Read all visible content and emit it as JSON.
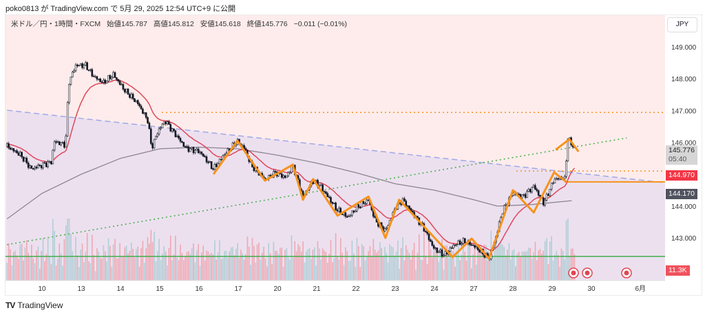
{
  "publish_line": "poko0813 が TradingView.com で 5月 29, 2025 12:54 UTC+9 に公開",
  "legend": {
    "symbol": "米ドル／円・1時間・FXCM",
    "open": "始値145.787",
    "high": "高値145.812",
    "low": "安値145.618",
    "close": "終値145.776",
    "change": "−0.011 (−0.01%)"
  },
  "currency": "JPY",
  "tags": {
    "last_price": "145.776",
    "countdown": "05:40",
    "level_red": "144.970",
    "ma_value": "144.170",
    "volume": "11.3K"
  },
  "brand": "TradingView",
  "colors": {
    "pink_bg": "#fdeceb",
    "lavender_bg": "#ece0ef",
    "candle": "#131722",
    "ma_fast": "#e0475a",
    "ma_slow": "#8c8490",
    "zigzag": "#f7931a",
    "trend_green": "#4caf50",
    "support_green": "#3fae49",
    "channel_blue": "#9fa8e8",
    "tag_red": "#f23645",
    "tag_dark": "#50535e"
  },
  "chart_data": {
    "type": "candlestick",
    "title": "米ドル／円・1時間・FXCM",
    "x_unit": "trading days since May 10 tick",
    "x_ticks": [
      {
        "t": 0,
        "label": "10"
      },
      {
        "t": 1,
        "label": "13"
      },
      {
        "t": 2,
        "label": "14"
      },
      {
        "t": 3,
        "label": "15"
      },
      {
        "t": 4,
        "label": "16"
      },
      {
        "t": 5,
        "label": "17"
      },
      {
        "t": 6,
        "label": "20"
      },
      {
        "t": 7,
        "label": "21"
      },
      {
        "t": 8,
        "label": "22"
      },
      {
        "t": 9,
        "label": "23"
      },
      {
        "t": 10,
        "label": "24"
      },
      {
        "t": 11,
        "label": "27"
      },
      {
        "t": 12,
        "label": "28"
      },
      {
        "t": 13,
        "label": "29"
      },
      {
        "t": 14,
        "label": "30"
      },
      {
        "t": 15.25,
        "label": "6月"
      }
    ],
    "y_ticks": [
      "149.000",
      "148.000",
      "147.000",
      "146.000",
      "144.000",
      "143.000"
    ],
    "ylim": [
      142.1,
      149.95
    ],
    "price_path": [
      [
        -0.89,
        145.88
      ],
      [
        -0.54,
        145.6
      ],
      [
        -0.28,
        145.17
      ],
      [
        -0.02,
        145.28
      ],
      [
        0.25,
        145.39
      ],
      [
        0.3,
        146.03
      ],
      [
        0.6,
        145.93
      ],
      [
        0.68,
        147.87
      ],
      [
        0.86,
        148.42
      ],
      [
        1.12,
        148.42
      ],
      [
        1.3,
        148.09
      ],
      [
        1.56,
        147.87
      ],
      [
        1.82,
        148.13
      ],
      [
        2.09,
        147.66
      ],
      [
        2.44,
        147.23
      ],
      [
        2.7,
        146.68
      ],
      [
        2.79,
        145.82
      ],
      [
        2.96,
        146.36
      ],
      [
        3.14,
        146.68
      ],
      [
        3.4,
        146.25
      ],
      [
        3.67,
        145.82
      ],
      [
        4.02,
        145.71
      ],
      [
        4.37,
        145.17
      ],
      [
        4.63,
        145.6
      ],
      [
        4.98,
        146.03
      ],
      [
        5.16,
        145.82
      ],
      [
        5.33,
        145.28
      ],
      [
        5.68,
        144.84
      ],
      [
        5.95,
        145.06
      ],
      [
        6.21,
        144.89
      ],
      [
        6.39,
        145.28
      ],
      [
        6.65,
        144.3
      ],
      [
        6.91,
        144.8
      ],
      [
        7.09,
        144.63
      ],
      [
        7.53,
        143.87
      ],
      [
        7.79,
        143.65
      ],
      [
        8.05,
        143.98
      ],
      [
        8.32,
        144.19
      ],
      [
        8.49,
        143.55
      ],
      [
        8.75,
        143.22
      ],
      [
        9.02,
        143.98
      ],
      [
        9.19,
        144.19
      ],
      [
        9.46,
        143.76
      ],
      [
        9.72,
        143.33
      ],
      [
        9.98,
        142.68
      ],
      [
        10.25,
        142.46
      ],
      [
        10.51,
        142.79
      ],
      [
        10.77,
        142.9
      ],
      [
        11.04,
        142.72
      ],
      [
        11.39,
        142.35
      ],
      [
        11.56,
        143.0
      ],
      [
        11.74,
        143.87
      ],
      [
        12.0,
        144.41
      ],
      [
        12.26,
        144.3
      ],
      [
        12.53,
        144.63
      ],
      [
        12.79,
        144.09
      ],
      [
        13.05,
        144.84
      ],
      [
        13.23,
        144.89
      ],
      [
        13.32,
        144.84
      ],
      [
        13.4,
        146.14
      ],
      [
        13.58,
        145.78
      ]
    ],
    "ma_slow": [
      [
        -0.89,
        143.6
      ],
      [
        0,
        144.4
      ],
      [
        1,
        145.0
      ],
      [
        2,
        145.5
      ],
      [
        3,
        145.8
      ],
      [
        4,
        145.85
      ],
      [
        5,
        145.8
      ],
      [
        6,
        145.6
      ],
      [
        7,
        145.35
      ],
      [
        8,
        145.05
      ],
      [
        9,
        144.7
      ],
      [
        10,
        144.5
      ],
      [
        11,
        144.2
      ],
      [
        11.6,
        144.0
      ],
      [
        12.5,
        144.05
      ],
      [
        13.5,
        144.17
      ]
    ],
    "channel_line": [
      [
        -0.89,
        147.01
      ],
      [
        15.9,
        144.73
      ]
    ],
    "trend_line": [
      [
        -0.89,
        142.79
      ],
      [
        14.9,
        146.14
      ]
    ],
    "levels": {
      "resistance_dotted": 146.94,
      "dotted_2": 145.1,
      "orange_solid": 144.76,
      "support_green": 142.42
    },
    "zigzag": [
      [
        [
          4.37,
          145.0
        ],
        [
          4.98,
          146.05
        ],
        [
          5.68,
          144.8
        ],
        [
          6.39,
          145.3
        ],
        [
          6.65,
          144.2
        ],
        [
          6.91,
          144.85
        ],
        [
          7.53,
          143.7
        ],
        [
          8.32,
          144.3
        ],
        [
          8.75,
          143.0
        ],
        [
          9.1,
          144.2
        ],
        [
          10.46,
          142.4
        ],
        [
          10.95,
          142.98
        ],
        [
          11.39,
          142.35
        ],
        [
          12.0,
          144.5
        ],
        [
          12.53,
          143.8
        ],
        [
          13.05,
          145.06
        ],
        [
          13.37,
          144.75
        ]
      ],
      [
        [
          13.09,
          145.77
        ],
        [
          13.44,
          146.1
        ],
        [
          13.67,
          145.71
        ]
      ]
    ]
  }
}
